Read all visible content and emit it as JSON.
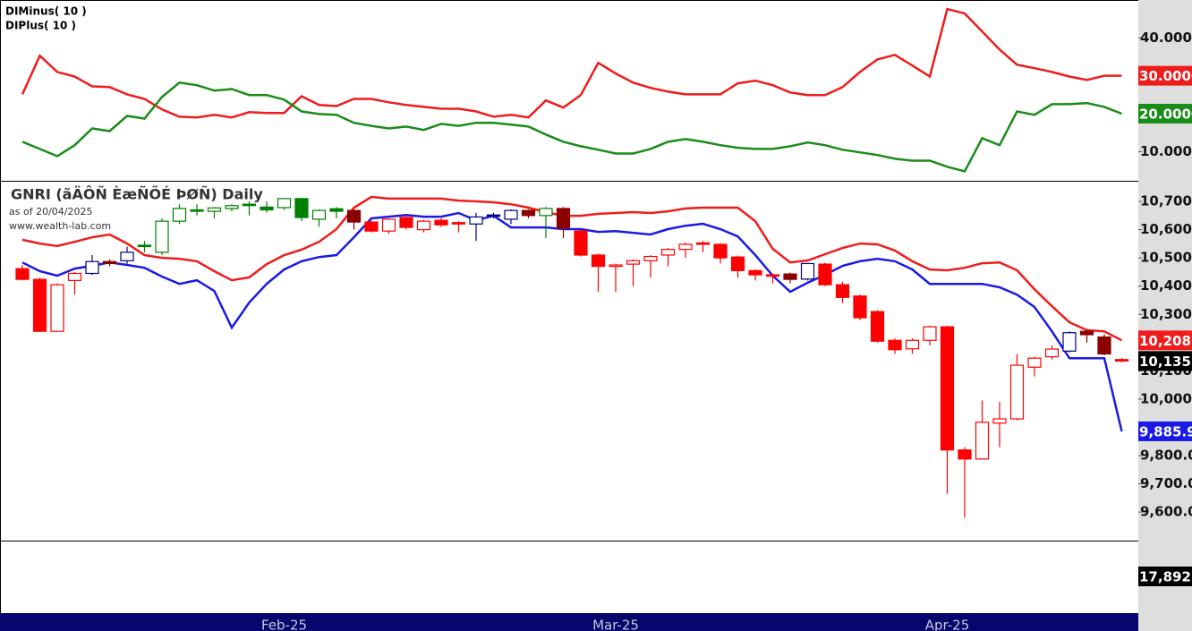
{
  "chart_data": [
    {
      "type": "line",
      "series": [
        {
          "name": "DIMinus( 10 )",
          "color": "#ee1c1c",
          "last_label": "30.0000",
          "values": [
            25.1,
            35.3,
            31.0,
            29.8,
            27.2,
            27.0,
            25.1,
            23.9,
            21.1,
            19.2,
            19.0,
            19.7,
            19.0,
            20.4,
            20.2,
            20.2,
            24.6,
            22.3,
            22.0,
            23.9,
            23.9,
            23.0,
            22.3,
            21.8,
            21.3,
            21.3,
            20.6,
            19.2,
            19.7,
            19.0,
            23.5,
            21.6,
            24.9,
            33.4,
            30.6,
            28.2,
            26.8,
            25.8,
            25.1,
            25.1,
            25.1,
            28.0,
            28.7,
            27.5,
            25.6,
            24.9,
            24.9,
            27.0,
            31.0,
            34.3,
            35.5,
            32.7,
            29.8,
            47.6,
            46.4,
            41.7,
            36.9,
            32.9,
            32.0,
            31.0,
            29.8,
            28.9,
            30.0,
            30.0
          ]
        },
        {
          "name": "DIPlus( 10 )",
          "color": "#1a8c1a",
          "last_label": "20.0000",
          "values": [
            12.6,
            10.7,
            8.8,
            11.7,
            16.1,
            15.4,
            19.4,
            18.7,
            24.4,
            28.2,
            27.5,
            26.1,
            26.5,
            24.9,
            24.9,
            23.7,
            20.6,
            19.9,
            19.7,
            17.6,
            16.8,
            16.1,
            16.6,
            15.7,
            17.3,
            16.8,
            17.6,
            17.6,
            17.1,
            16.6,
            14.5,
            12.6,
            11.4,
            10.5,
            9.5,
            9.5,
            10.7,
            12.6,
            13.3,
            12.6,
            11.7,
            11.0,
            10.7,
            10.7,
            11.4,
            12.4,
            11.7,
            10.5,
            9.8,
            9.1,
            8.1,
            7.6,
            7.6,
            6.0,
            4.8,
            13.5,
            11.7,
            20.6,
            19.7,
            22.5,
            22.5,
            22.8,
            21.8,
            20.0
          ]
        }
      ],
      "ylim": [
        2.3,
        49.5
      ],
      "yticks": [
        {
          "value": 40,
          "label": "40.0000"
        },
        {
          "value": 10,
          "label": "10.0000"
        }
      ]
    },
    {
      "type": "candlestick",
      "title": "GNRI (ãÄÔÑ ÈæÑÕÉ ÞØÑ) Daily",
      "subtitle": "as of 20/04/2025",
      "source": "www.wealth-lab.com",
      "categories": [
        null,
        null,
        null,
        null,
        null,
        null,
        null,
        null,
        null,
        null,
        null,
        null,
        null,
        null,
        null,
        "Feb-25",
        null,
        null,
        null,
        null,
        null,
        null,
        null,
        null,
        null,
        null,
        null,
        null,
        null,
        null,
        null,
        null,
        null,
        null,
        "Mar-25",
        null,
        null,
        null,
        null,
        null,
        null,
        null,
        null,
        null,
        null,
        null,
        null,
        null,
        null,
        null,
        null,
        null,
        null,
        "Apr-25",
        null,
        null,
        null,
        null,
        null,
        null,
        null,
        null,
        null,
        null
      ],
      "candles": [
        [
          10462,
          10475,
          10420,
          10424
        ],
        [
          10424,
          10430,
          10240,
          10240
        ],
        [
          10240,
          10410,
          10240,
          10405
        ],
        [
          10420,
          10450,
          10370,
          10445
        ],
        [
          10445,
          10510,
          10440,
          10487
        ],
        [
          10487,
          10495,
          10470,
          10480
        ],
        [
          10490,
          10540,
          10480,
          10520
        ],
        [
          10545,
          10560,
          10520,
          10540
        ],
        [
          10520,
          10640,
          10510,
          10630
        ],
        [
          10630,
          10690,
          10620,
          10675
        ],
        [
          10670,
          10690,
          10650,
          10665
        ],
        [
          10665,
          10680,
          10640,
          10677
        ],
        [
          10675,
          10690,
          10665,
          10685
        ],
        [
          10690,
          10700,
          10650,
          10688
        ],
        [
          10680,
          10700,
          10660,
          10670
        ],
        [
          10678,
          10712,
          10670,
          10710
        ],
        [
          10710,
          10712,
          10630,
          10643
        ],
        [
          10637,
          10672,
          10610,
          10668
        ],
        [
          10674,
          10680,
          10640,
          10665
        ],
        [
          10668,
          10672,
          10600,
          10627
        ],
        [
          10627,
          10632,
          10590,
          10595
        ],
        [
          10595,
          10640,
          10585,
          10637
        ],
        [
          10643,
          10648,
          10600,
          10608
        ],
        [
          10600,
          10635,
          10590,
          10630
        ],
        [
          10633,
          10640,
          10610,
          10617
        ],
        [
          10625,
          10630,
          10590,
          10620
        ],
        [
          10620,
          10660,
          10560,
          10645
        ],
        [
          10650,
          10660,
          10640,
          10652
        ],
        [
          10637,
          10672,
          10620,
          10668
        ],
        [
          10668,
          10672,
          10640,
          10650
        ],
        [
          10650,
          10680,
          10570,
          10675
        ],
        [
          10675,
          10680,
          10570,
          10605
        ],
        [
          10595,
          10600,
          10505,
          10510
        ],
        [
          10510,
          10515,
          10380,
          10470
        ],
        [
          10470,
          10480,
          10380,
          10475
        ],
        [
          10478,
          10495,
          10400,
          10490
        ],
        [
          10490,
          10510,
          10430,
          10505
        ],
        [
          10510,
          10535,
          10470,
          10530
        ],
        [
          10530,
          10555,
          10500,
          10548
        ],
        [
          10553,
          10560,
          10520,
          10550
        ],
        [
          10548,
          10552,
          10480,
          10500
        ],
        [
          10503,
          10508,
          10430,
          10455
        ],
        [
          10455,
          10460,
          10420,
          10440
        ],
        [
          10440,
          10445,
          10410,
          10437
        ],
        [
          10443,
          10448,
          10410,
          10424
        ],
        [
          10425,
          10482,
          10420,
          10480
        ],
        [
          10478,
          10482,
          10400,
          10405
        ],
        [
          10405,
          10415,
          10340,
          10360
        ],
        [
          10365,
          10370,
          10280,
          10288
        ],
        [
          10310,
          10315,
          10200,
          10205
        ],
        [
          10208,
          10215,
          10160,
          10175
        ],
        [
          10178,
          10215,
          10160,
          10208
        ],
        [
          10208,
          10260,
          10190,
          10256
        ],
        [
          10256,
          10260,
          9665,
          9820
        ],
        [
          9820,
          9830,
          9580,
          9788
        ],
        [
          9788,
          9995,
          9785,
          9918
        ],
        [
          9915,
          9990,
          9830,
          9930
        ],
        [
          9930,
          10160,
          9925,
          10120
        ],
        [
          10113,
          10150,
          10080,
          10145
        ],
        [
          10150,
          10190,
          10140,
          10177
        ],
        [
          10170,
          10240,
          10165,
          10235
        ],
        [
          10240,
          10245,
          10200,
          10228
        ],
        [
          10220,
          10230,
          10155,
          10160
        ],
        [
          10140,
          10145,
          10130,
          10135
        ]
      ],
      "candle_styles": [
        "R",
        "R",
        "r",
        "r",
        "b",
        "D",
        "b",
        "G",
        "g",
        "g",
        "G",
        "g",
        "g",
        "G",
        "G",
        "g",
        "G",
        "g",
        "G",
        "D",
        "R",
        "r",
        "R",
        "r",
        "R",
        "R",
        "b",
        "B",
        "b",
        "D",
        "g",
        "D",
        "R",
        "R",
        "r",
        "r",
        "r",
        "r",
        "r",
        "R",
        "R",
        "R",
        "R",
        "R",
        "D",
        "b",
        "R",
        "R",
        "R",
        "R",
        "R",
        "r",
        "r",
        "R",
        "R",
        "r",
        "r",
        "r",
        "r",
        "r",
        "b",
        "D",
        "D",
        "R"
      ],
      "styles": {
        "R": {
          "color": "#ff0000",
          "hollow": false
        },
        "r": {
          "color": "#ff0000",
          "hollow": true
        },
        "D": {
          "color": "#8b0000",
          "hollow": false
        },
        "G": {
          "color": "#008000",
          "hollow": false
        },
        "g": {
          "color": "#008000",
          "hollow": true
        },
        "B": {
          "color": "#000080",
          "hollow": false
        },
        "b": {
          "color": "#000080",
          "hollow": true
        }
      },
      "series": [
        {
          "color": "#ee1c1c",
          "last_label": "10,208",
          "values": [
            10564,
            10551,
            10542,
            10557,
            10573,
            10583,
            10551,
            10510,
            10500,
            10497,
            10488,
            10453,
            10421,
            10431,
            10478,
            10510,
            10529,
            10557,
            10602,
            10678,
            10716,
            10710,
            10710,
            10710,
            10710,
            10703,
            10700,
            10697,
            10690,
            10678,
            10662,
            10649,
            10649,
            10656,
            10659,
            10662,
            10659,
            10665,
            10675,
            10678,
            10678,
            10678,
            10630,
            10532,
            10484,
            10491,
            10513,
            10535,
            10551,
            10548,
            10526,
            10488,
            10459,
            10456,
            10465,
            10481,
            10484,
            10456,
            10389,
            10329,
            10272,
            10244,
            10240,
            10208
          ]
        },
        {
          "color": "#1a1ae6",
          "last_label": "9,885.9",
          "values": [
            10484,
            10453,
            10437,
            10462,
            10472,
            10484,
            10475,
            10465,
            10434,
            10408,
            10421,
            10383,
            10253,
            10342,
            10408,
            10459,
            10488,
            10503,
            10510,
            10573,
            10640,
            10646,
            10652,
            10646,
            10646,
            10659,
            10633,
            10649,
            10608,
            10608,
            10608,
            10602,
            10602,
            10592,
            10595,
            10589,
            10583,
            10602,
            10614,
            10621,
            10602,
            10576,
            10510,
            10437,
            10380,
            10412,
            10440,
            10472,
            10488,
            10497,
            10488,
            10459,
            10408,
            10408,
            10408,
            10408,
            10396,
            10370,
            10326,
            10240,
            10145,
            10145,
            10145,
            9885.9
          ]
        }
      ],
      "last_price_label": "10,135",
      "ylim": [
        9499,
        10773
      ],
      "yticks": [
        {
          "value": 10700,
          "label": "10,700"
        },
        {
          "value": 10600,
          "label": "10,600"
        },
        {
          "value": 10500,
          "label": "10,500"
        },
        {
          "value": 10400,
          "label": "10,400"
        },
        {
          "value": 10300,
          "label": "10,300"
        },
        {
          "value": 10100,
          "label": "10,100"
        },
        {
          "value": 10000,
          "label": "10,000"
        },
        {
          "value": 9800,
          "label": "9,800.0"
        },
        {
          "value": 9700,
          "label": "9,700.0"
        },
        {
          "value": 9600,
          "label": "9,600.0"
        }
      ]
    },
    {
      "type": "volume",
      "last_value": 17892,
      "last_label": "17,892"
    }
  ]
}
